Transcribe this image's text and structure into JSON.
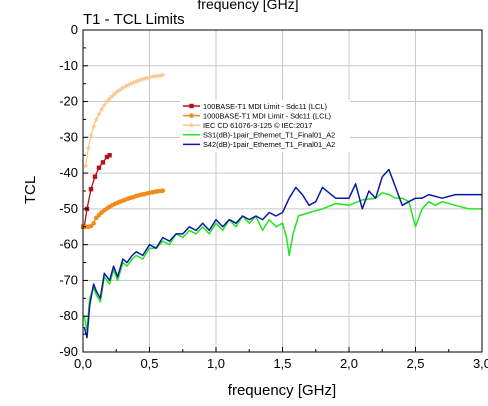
{
  "chart_data": {
    "type": "line",
    "top_text": "frequency [GHz]",
    "title": "T1 - TCL Limits",
    "xlabel": "frequency [GHz]",
    "ylabel": "TCL",
    "xlim": [
      0,
      3.0
    ],
    "ylim": [
      -90,
      0
    ],
    "x_ticks": [
      "0,0",
      "0,5",
      "1,0",
      "1,5",
      "2,0",
      "2,5",
      "3,0"
    ],
    "y_ticks": [
      "0",
      "-10",
      "-20",
      "-30",
      "-40",
      "-50",
      "-60",
      "-70",
      "-80",
      "-90"
    ],
    "grid": true,
    "legend_position": "top-center",
    "series": [
      {
        "name": "100BASE-T1 MDI Limit - Sdc11 (LCL)",
        "color": "#b3121a",
        "marker": "square",
        "x": [
          0.001,
          0.01,
          0.03,
          0.06,
          0.09,
          0.12,
          0.15,
          0.18,
          0.2
        ],
        "y": [
          -55,
          -55,
          -50,
          -44.5,
          -41,
          -38.5,
          -37,
          -35.5,
          -35
        ]
      },
      {
        "name": "1000BASE-T1 MDI Limit - Sdc11 (LCL)",
        "color": "#f28a1c",
        "marker": "circle",
        "x": [
          0.001,
          0.02,
          0.04,
          0.06,
          0.08,
          0.1,
          0.12,
          0.14,
          0.16,
          0.18,
          0.2,
          0.22,
          0.24,
          0.26,
          0.28,
          0.3,
          0.32,
          0.34,
          0.36,
          0.38,
          0.4,
          0.42,
          0.44,
          0.46,
          0.48,
          0.5,
          0.52,
          0.54,
          0.56,
          0.58,
          0.6
        ],
        "y": [
          -55,
          -55,
          -55,
          -54.8,
          -54,
          -52.5,
          -51.7,
          -51,
          -50.4,
          -49.9,
          -49.4,
          -49,
          -48.6,
          -48.3,
          -48,
          -47.7,
          -47.4,
          -47.1,
          -46.9,
          -46.7,
          -46.4,
          -46.2,
          -46,
          -45.9,
          -45.7,
          -45.5,
          -45.4,
          -45.2,
          -45.1,
          -45,
          -44.9
        ]
      },
      {
        "name": "IEC CD 61076-3-125 © IEC:2017",
        "color": "#f7c98f",
        "marker": "star",
        "x": [
          0.02,
          0.04,
          0.06,
          0.08,
          0.1,
          0.12,
          0.14,
          0.16,
          0.18,
          0.2,
          0.22,
          0.24,
          0.26,
          0.28,
          0.3,
          0.32,
          0.34,
          0.36,
          0.38,
          0.4,
          0.42,
          0.44,
          0.46,
          0.48,
          0.5,
          0.52,
          0.54,
          0.56,
          0.58,
          0.6
        ],
        "y": [
          -38,
          -33,
          -29.5,
          -27,
          -25,
          -23.5,
          -22.2,
          -21,
          -20,
          -19.2,
          -18.5,
          -17.8,
          -17.2,
          -16.7,
          -16.2,
          -15.8,
          -15.4,
          -15,
          -14.7,
          -14.4,
          -14.1,
          -13.8,
          -13.6,
          -13.4,
          -13.2,
          -13,
          -12.9,
          -12.8,
          -12.7,
          -12.6
        ]
      },
      {
        "name": "S31(dB)-1pair_Ethernet_T1_Final01_A2",
        "color": "#22e61e",
        "marker": "none",
        "x": [
          0.01,
          0.03,
          0.05,
          0.08,
          0.1,
          0.13,
          0.16,
          0.2,
          0.23,
          0.26,
          0.3,
          0.33,
          0.37,
          0.4,
          0.45,
          0.5,
          0.55,
          0.6,
          0.65,
          0.7,
          0.75,
          0.8,
          0.85,
          0.9,
          0.95,
          1.0,
          1.05,
          1.1,
          1.15,
          1.2,
          1.25,
          1.3,
          1.35,
          1.4,
          1.45,
          1.5,
          1.53,
          1.55,
          1.58,
          1.62,
          1.7,
          1.8,
          1.9,
          2.0,
          2.1,
          2.2,
          2.25,
          2.3,
          2.35,
          2.4,
          2.45,
          2.5,
          2.55,
          2.6,
          2.65,
          2.7,
          2.8,
          2.9,
          3.0
        ],
        "y": [
          -80,
          -84,
          -75,
          -72,
          -74,
          -76,
          -69,
          -71,
          -67,
          -70,
          -65,
          -66,
          -64,
          -63,
          -64,
          -61,
          -61,
          -59,
          -60,
          -57,
          -58,
          -56,
          -57,
          -55,
          -57,
          -54,
          -56,
          -53,
          -55,
          -52,
          -54,
          -52,
          -56,
          -53,
          -55,
          -54,
          -58,
          -63,
          -57,
          -52,
          -51,
          -50,
          -48.5,
          -49,
          -47.5,
          -47,
          -45.5,
          -46,
          -47,
          -47,
          -48,
          -55,
          -50,
          -48,
          -49,
          -48,
          -49,
          -50,
          -50
        ]
      },
      {
        "name": "S42(dB)-1pair_Ethernet_T1_Final01_A2",
        "color": "#0a1aa8",
        "marker": "none",
        "x": [
          0.01,
          0.03,
          0.05,
          0.08,
          0.1,
          0.13,
          0.16,
          0.2,
          0.23,
          0.26,
          0.3,
          0.33,
          0.37,
          0.4,
          0.45,
          0.5,
          0.55,
          0.6,
          0.65,
          0.7,
          0.75,
          0.8,
          0.85,
          0.9,
          0.95,
          1.0,
          1.05,
          1.1,
          1.15,
          1.2,
          1.25,
          1.3,
          1.35,
          1.4,
          1.45,
          1.5,
          1.55,
          1.6,
          1.65,
          1.7,
          1.75,
          1.8,
          1.9,
          2.0,
          2.05,
          2.1,
          2.15,
          2.2,
          2.25,
          2.3,
          2.35,
          2.4,
          2.45,
          2.5,
          2.55,
          2.6,
          2.7,
          2.8,
          2.9,
          3.0
        ],
        "y": [
          -83,
          -86,
          -77,
          -71,
          -73,
          -75,
          -68,
          -70,
          -66,
          -69,
          -64,
          -65,
          -63,
          -62,
          -63,
          -60,
          -61,
          -58,
          -59,
          -57,
          -57,
          -55,
          -56,
          -54,
          -56,
          -53,
          -55,
          -53,
          -54,
          -52,
          -53,
          -52,
          -53,
          -51,
          -52,
          -51,
          -47,
          -44,
          -46,
          -49,
          -48,
          -44,
          -47,
          -47,
          -43,
          -50,
          -45,
          -47,
          -41,
          -39,
          -44,
          -49,
          -48,
          -47,
          -47,
          -46,
          -47,
          -46,
          -46,
          -46
        ]
      }
    ]
  }
}
